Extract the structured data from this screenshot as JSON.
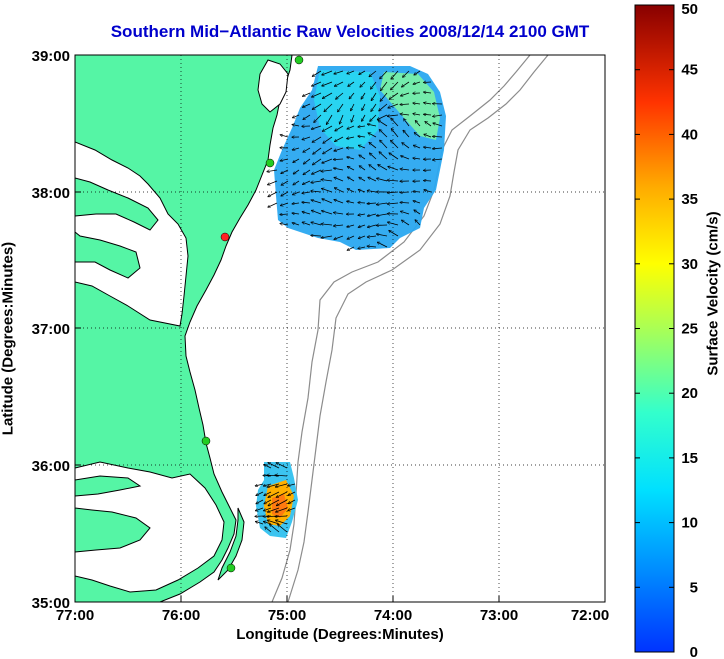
{
  "title": "Southern Mid−Atlantic Raw Velocities 2008/12/14 2100 GMT",
  "xlabel": "Longitude (Degrees:Minutes)",
  "ylabel": "Latitude (Degrees:Minutes)",
  "colorbar": {
    "label": "Surface Velocity (cm/s)",
    "ticks": [
      "0",
      "5",
      "10",
      "15",
      "20",
      "25",
      "30",
      "35",
      "40",
      "45",
      "50"
    ],
    "min": 0,
    "max": 50
  },
  "axes": {
    "x_ticks": [
      "77:00",
      "76:00",
      "75:00",
      "74:00",
      "73:00",
      "72:00"
    ],
    "y_ticks": [
      "39:00",
      "38:00",
      "37:00",
      "36:00",
      "35:00"
    ],
    "grid": "dotted"
  },
  "colors": {
    "land": "#55f5a5",
    "coast": "#000000",
    "bathymetry": "#8c8c8c",
    "title": "#0000cc",
    "station_active": "#22cc22",
    "station_inactive": "#ff2222"
  }
}
